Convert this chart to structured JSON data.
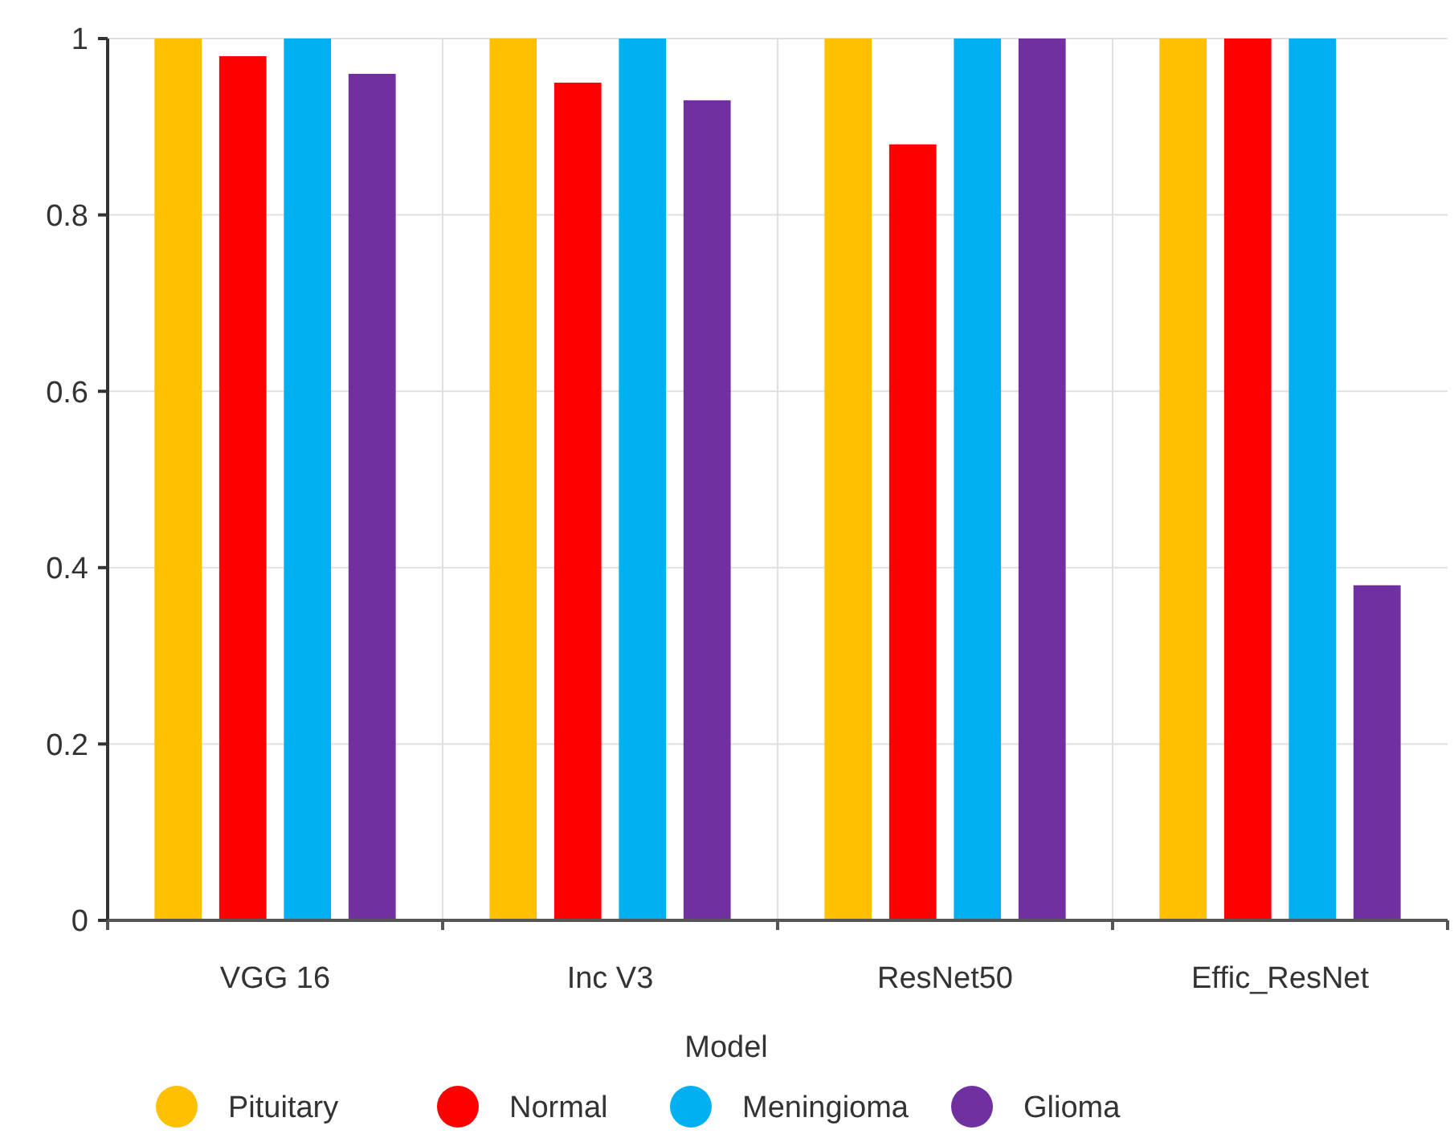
{
  "chart_data": {
    "type": "bar",
    "categories": [
      "VGG 16",
      "Inc V3",
      "ResNet50",
      "Effic_ResNet"
    ],
    "xlabel": "Model",
    "series": [
      {
        "name": "Pituitary",
        "color": "#ffc000",
        "values": [
          1,
          1,
          1,
          1
        ]
      },
      {
        "name": "Normal",
        "color": "#ff0000",
        "values": [
          0.98,
          0.95,
          0.88,
          1
        ]
      },
      {
        "name": "Meningioma",
        "color": "#00b0f0",
        "values": [
          1,
          1,
          1,
          1
        ]
      },
      {
        "name": "Glioma",
        "color": "#7030a0",
        "values": [
          0.96,
          0.93,
          1,
          0.38
        ]
      }
    ],
    "ylim": [
      0,
      1
    ],
    "yticks": [
      0,
      0.2,
      0.4,
      0.6,
      0.8,
      1
    ],
    "grid": true,
    "legend": "bottom"
  }
}
